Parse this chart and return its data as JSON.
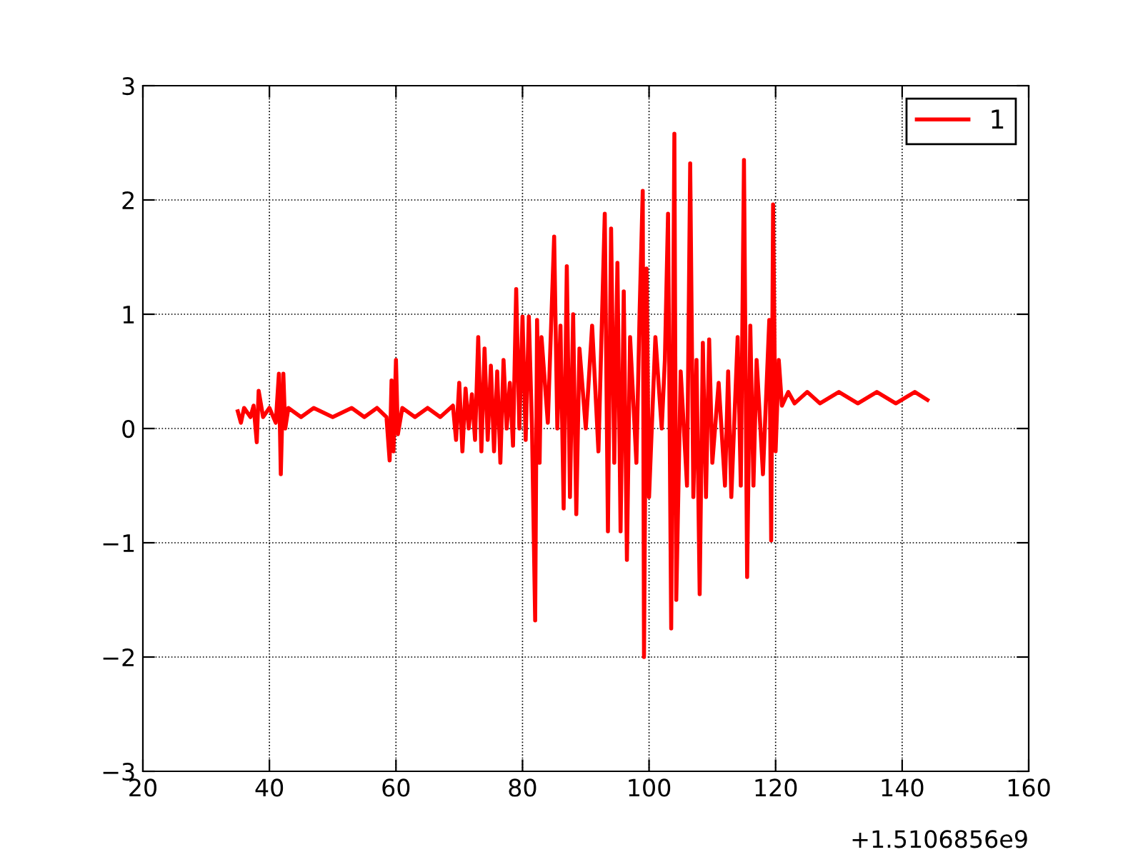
{
  "chart_data": {
    "type": "line",
    "xlim": [
      20,
      160
    ],
    "ylim": [
      -3,
      3
    ],
    "xticks": [
      20,
      40,
      60,
      80,
      100,
      120,
      140,
      160
    ],
    "yticks": [
      -3,
      -2,
      -1,
      0,
      1,
      2,
      3
    ],
    "grid": true,
    "legend": "top right",
    "line_style": "solid",
    "marker": "none",
    "annotations": [
      "+1.5106856e9"
    ],
    "series": [
      {
        "name": "1",
        "color": "#ff0000",
        "x": [
          35,
          35.5,
          36,
          37,
          37.5,
          38,
          38.3,
          39,
          40,
          41,
          41.5,
          41.8,
          42.2,
          42.5,
          43,
          45,
          47,
          50,
          53,
          55,
          57,
          58.5,
          59,
          59.3,
          59.6,
          60,
          60.3,
          61,
          63,
          65,
          67,
          69,
          69.5,
          70,
          70.5,
          71,
          71.5,
          72,
          72.5,
          73,
          73.5,
          74,
          74.5,
          75,
          75.5,
          76,
          76.5,
          77,
          77.5,
          78,
          78.5,
          79,
          79.5,
          80,
          80.5,
          81,
          81.5,
          82,
          82.3,
          82.7,
          83,
          84,
          85,
          85.5,
          86,
          86.5,
          87,
          87.5,
          88,
          88.5,
          89,
          90,
          91,
          92,
          93,
          93.5,
          94,
          94.5,
          95,
          95.5,
          96,
          96.5,
          97,
          98,
          98.5,
          99,
          99.2,
          99.6,
          100,
          101,
          102,
          102.5,
          103,
          103.5,
          104,
          104.3,
          105,
          106,
          106.5,
          107,
          107.5,
          108,
          108.5,
          109,
          109.5,
          110,
          111,
          112,
          112.5,
          113,
          114,
          114.5,
          115,
          115.5,
          116,
          116.5,
          117,
          118,
          119,
          119.3,
          119.6,
          120,
          120.5,
          121,
          122,
          123,
          125,
          127,
          130,
          133,
          136,
          139,
          142,
          144
        ],
        "values": [
          0.15,
          0.05,
          0.18,
          0.1,
          0.2,
          -0.12,
          0.33,
          0.1,
          0.18,
          0.05,
          0.48,
          -0.4,
          0.48,
          0.0,
          0.18,
          0.1,
          0.18,
          0.1,
          0.18,
          0.1,
          0.18,
          0.1,
          -0.28,
          0.42,
          -0.2,
          0.6,
          -0.05,
          0.18,
          0.1,
          0.18,
          0.1,
          0.2,
          -0.1,
          0.4,
          -0.2,
          0.35,
          0.0,
          0.3,
          -0.1,
          0.8,
          -0.2,
          0.7,
          -0.1,
          0.55,
          -0.2,
          0.5,
          -0.3,
          0.6,
          0.0,
          0.4,
          -0.15,
          1.22,
          0.0,
          0.98,
          -0.1,
          0.98,
          0.0,
          -1.68,
          0.95,
          -0.3,
          0.8,
          0.05,
          1.68,
          0.0,
          0.9,
          -0.7,
          1.42,
          -0.6,
          1.0,
          -0.75,
          0.7,
          0.0,
          0.9,
          -0.2,
          1.88,
          -0.9,
          1.75,
          -0.3,
          1.45,
          -0.9,
          1.2,
          -1.15,
          0.8,
          -0.3,
          1.0,
          2.08,
          -2.0,
          1.4,
          -0.6,
          0.8,
          0.0,
          0.6,
          1.88,
          -1.75,
          2.58,
          -1.5,
          0.5,
          -0.5,
          2.32,
          -0.6,
          0.6,
          -1.45,
          0.75,
          -0.6,
          0.78,
          -0.3,
          0.4,
          -0.5,
          0.5,
          -0.6,
          0.8,
          -0.5,
          2.35,
          -1.3,
          0.9,
          -0.5,
          0.6,
          -0.4,
          0.95,
          -0.98,
          1.96,
          -0.2,
          0.6,
          0.2,
          0.32,
          0.22,
          0.32,
          0.22,
          0.32,
          0.22,
          0.32,
          0.22,
          0.32,
          0.25
        ]
      }
    ]
  }
}
